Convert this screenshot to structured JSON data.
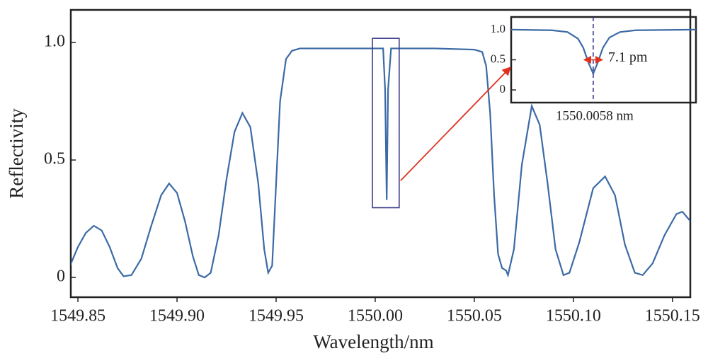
{
  "chart_data": [
    {
      "type": "line",
      "xlabel": "Wavelength/nm",
      "ylabel": "Reflectivity",
      "color": "#3b6aa5",
      "x": [
        1549.846,
        1549.85,
        1549.854,
        1549.858,
        1549.862,
        1549.866,
        1549.87,
        1549.873,
        1549.877,
        1549.882,
        1549.887,
        1549.892,
        1549.896,
        1549.9,
        1549.904,
        1549.908,
        1549.911,
        1549.914,
        1549.917,
        1549.921,
        1549.925,
        1549.929,
        1549.933,
        1549.937,
        1549.941,
        1549.944,
        1549.946,
        1549.948,
        1549.95,
        1549.952,
        1549.955,
        1549.958,
        1549.962,
        1549.98,
        1550.0,
        1550.004,
        1550.005,
        1550.0058,
        1550.0065,
        1550.008,
        1550.03,
        1550.05,
        1550.054,
        1550.056,
        1550.058,
        1550.06,
        1550.062,
        1550.064,
        1550.066,
        1550.067,
        1550.07,
        1550.074,
        1550.079,
        1550.083,
        1550.087,
        1550.091,
        1550.095,
        1550.098,
        1550.103,
        1550.11,
        1550.116,
        1550.121,
        1550.126,
        1550.131,
        1550.135,
        1550.14,
        1550.146,
        1550.152,
        1550.155,
        1550.159
      ],
      "values": [
        0.05,
        0.13,
        0.19,
        0.22,
        0.2,
        0.13,
        0.04,
        0.005,
        0.01,
        0.08,
        0.22,
        0.35,
        0.4,
        0.36,
        0.24,
        0.09,
        0.01,
        0.0,
        0.02,
        0.18,
        0.42,
        0.62,
        0.7,
        0.64,
        0.4,
        0.12,
        0.02,
        0.05,
        0.4,
        0.75,
        0.93,
        0.965,
        0.975,
        0.975,
        0.975,
        0.975,
        0.8,
        0.33,
        0.8,
        0.975,
        0.975,
        0.97,
        0.96,
        0.9,
        0.7,
        0.35,
        0.1,
        0.04,
        0.03,
        0.01,
        0.12,
        0.48,
        0.73,
        0.65,
        0.4,
        0.12,
        0.01,
        0.02,
        0.15,
        0.38,
        0.43,
        0.35,
        0.14,
        0.02,
        0.01,
        0.06,
        0.18,
        0.27,
        0.28,
        0.24
      ],
      "xlim": [
        1549.8464,
        1550.159
      ],
      "ylim": [
        -0.084,
        1.139
      ],
      "xticks": [
        1549.85,
        {
          "value": 1549.9,
          "label": "1549.90"
        },
        1549.95,
        {
          "value": 1550.0,
          "label": "1550.00"
        },
        1550.05,
        {
          "value": 1550.1,
          "label": "1550.10"
        },
        1550.15
      ],
      "yticks": [
        0,
        0.5,
        {
          "value": 1,
          "label": "1.0"
        }
      ],
      "highlight": {
        "x": [
          1549.9986,
          1550.0121
        ],
        "y": [
          0.297,
          1.018
        ],
        "color": "#3c3c8c"
      },
      "arrow_color": "#e0301e"
    },
    {
      "type": "line",
      "color": "#3b6aa5",
      "x": [
        1549.9745,
        1549.99,
        1549.996,
        1550.0,
        1550.002,
        1550.004,
        1550.0058,
        1550.0075,
        1550.0095,
        1550.012,
        1550.016,
        1550.022,
        1550.045
      ],
      "values": [
        1.0,
        0.99,
        0.96,
        0.85,
        0.7,
        0.45,
        0.27,
        0.45,
        0.7,
        0.87,
        0.96,
        0.99,
        1.0
      ],
      "xlim": [
        1549.9745,
        1550.045
      ],
      "ylim": [
        -0.21,
        1.21
      ],
      "yticks": [
        0,
        0.5,
        {
          "value": 1,
          "label": "1.0"
        }
      ],
      "marker": {
        "x": 1550.0058,
        "label": "1550.0058 nm",
        "color": "#3c3c8c"
      },
      "fwhm_arrow": {
        "x": [
          1550.0023,
          1550.0093
        ],
        "y": 0.5,
        "label": "7.1 pm",
        "color": "#e0301e"
      }
    }
  ]
}
